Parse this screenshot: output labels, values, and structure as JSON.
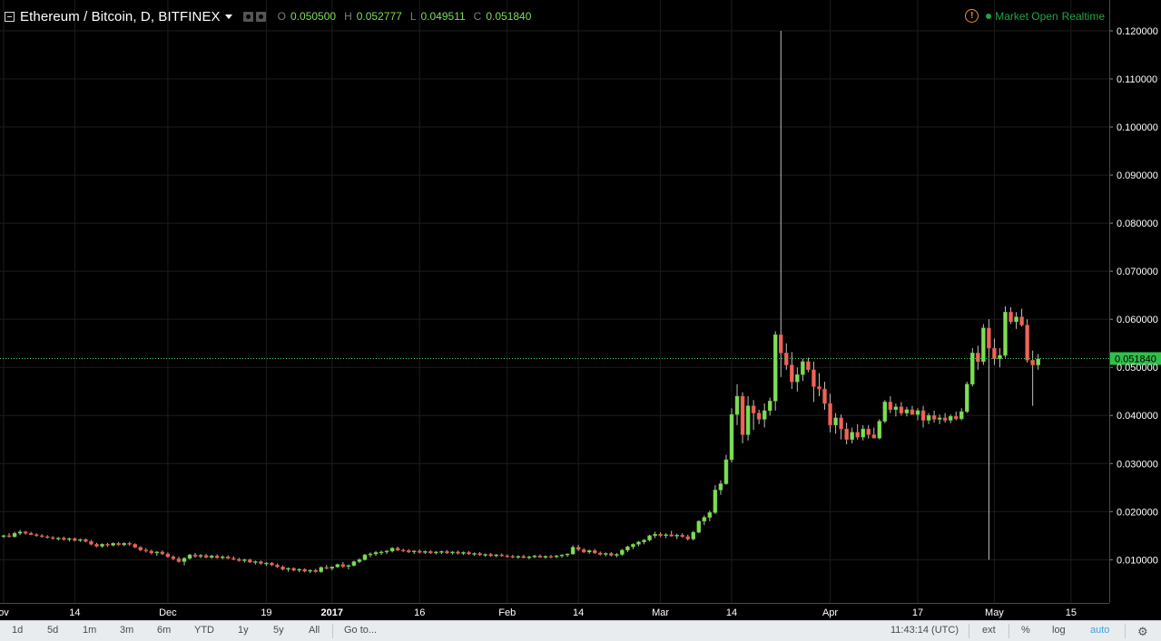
{
  "header": {
    "symbol_title": "Ethereum / Bitcoin, D, BITFINEX",
    "open_label": "O",
    "open": "0.050500",
    "high_label": "H",
    "high": "0.052777",
    "low_label": "L",
    "low": "0.049511",
    "close_label": "C",
    "close": "0.051840",
    "market_status": "Market Open",
    "feed_status": "Realtime"
  },
  "colors": {
    "background": "#000000",
    "grid": "#1c1c1c",
    "up": "#7fdc57",
    "down": "#f06458",
    "axis_text": "#ffffff",
    "price_line": "#49d05e"
  },
  "chart_data": {
    "type": "candlestick",
    "last_price": 0.05184,
    "last_price_label": "0.051840",
    "ylim": [
      -0.002,
      0.122
    ],
    "y_ticks": [
      0.01,
      0.02,
      0.03,
      0.04,
      0.05,
      0.06,
      0.07,
      0.08,
      0.09,
      0.1,
      0.11,
      0.12
    ],
    "y_tick_labels": [
      "0.010000",
      "0.020000",
      "0.030000",
      "0.040000",
      "0.050000",
      "0.060000",
      "0.070000",
      "0.080000",
      "0.090000",
      "0.100000",
      "0.110000",
      "0.120000"
    ],
    "x_ticks": [
      {
        "label": "ov",
        "index": 0,
        "bold": false
      },
      {
        "label": "14",
        "index": 13,
        "bold": false
      },
      {
        "label": "Dec",
        "index": 30,
        "bold": false
      },
      {
        "label": "19",
        "index": 48,
        "bold": false
      },
      {
        "label": "2017",
        "index": 60,
        "bold": true
      },
      {
        "label": "16",
        "index": 76,
        "bold": false
      },
      {
        "label": "Feb",
        "index": 92,
        "bold": false
      },
      {
        "label": "14",
        "index": 105,
        "bold": false
      },
      {
        "label": "Mar",
        "index": 120,
        "bold": false
      },
      {
        "label": "14",
        "index": 133,
        "bold": false
      },
      {
        "label": "Apr",
        "index": 151,
        "bold": false
      },
      {
        "label": "17",
        "index": 167,
        "bold": false
      },
      {
        "label": "May",
        "index": 181,
        "bold": false
      },
      {
        "label": "15",
        "index": 195,
        "bold": false
      }
    ],
    "candles": [
      [
        0.0148,
        0.0152,
        0.0145,
        0.015
      ],
      [
        0.015,
        0.0155,
        0.0146,
        0.0148
      ],
      [
        0.0148,
        0.0158,
        0.0146,
        0.0155
      ],
      [
        0.0155,
        0.0162,
        0.0151,
        0.0158
      ],
      [
        0.0158,
        0.016,
        0.0152,
        0.0155
      ],
      [
        0.0155,
        0.0158,
        0.0151,
        0.0152
      ],
      [
        0.0152,
        0.0155,
        0.0148,
        0.015
      ],
      [
        0.015,
        0.0153,
        0.0146,
        0.0148
      ],
      [
        0.0148,
        0.0151,
        0.0144,
        0.0146
      ],
      [
        0.0146,
        0.0149,
        0.0142,
        0.0144
      ],
      [
        0.0144,
        0.0147,
        0.014,
        0.0145
      ],
      [
        0.0145,
        0.0148,
        0.014,
        0.0142
      ],
      [
        0.0142,
        0.0146,
        0.0138,
        0.0144
      ],
      [
        0.0144,
        0.0146,
        0.0138,
        0.014
      ],
      [
        0.014,
        0.0144,
        0.0137,
        0.0142
      ],
      [
        0.0142,
        0.0144,
        0.0136,
        0.0138
      ],
      [
        0.0138,
        0.0141,
        0.013,
        0.0132
      ],
      [
        0.0132,
        0.0135,
        0.0126,
        0.0128
      ],
      [
        0.0128,
        0.0134,
        0.0125,
        0.0132
      ],
      [
        0.0132,
        0.0135,
        0.0127,
        0.013
      ],
      [
        0.013,
        0.0136,
        0.0128,
        0.0134
      ],
      [
        0.0134,
        0.0137,
        0.0129,
        0.0131
      ],
      [
        0.0131,
        0.0136,
        0.0128,
        0.0134
      ],
      [
        0.0134,
        0.0137,
        0.0129,
        0.0132
      ],
      [
        0.0132,
        0.0134,
        0.0124,
        0.0126
      ],
      [
        0.0126,
        0.0128,
        0.0118,
        0.012
      ],
      [
        0.012,
        0.0124,
        0.0115,
        0.0118
      ],
      [
        0.0118,
        0.0121,
        0.0111,
        0.0114
      ],
      [
        0.0114,
        0.0118,
        0.0108,
        0.0116
      ],
      [
        0.0116,
        0.0119,
        0.011,
        0.0112
      ],
      [
        0.0112,
        0.0115,
        0.0104,
        0.0106
      ],
      [
        0.0106,
        0.0109,
        0.0099,
        0.0102
      ],
      [
        0.0102,
        0.0106,
        0.0094,
        0.0096
      ],
      [
        0.0096,
        0.0105,
        0.0088,
        0.0103
      ],
      [
        0.0103,
        0.0112,
        0.01,
        0.011
      ],
      [
        0.011,
        0.0114,
        0.0104,
        0.0107
      ],
      [
        0.0107,
        0.0112,
        0.0103,
        0.0109
      ],
      [
        0.0109,
        0.0112,
        0.0103,
        0.0105
      ],
      [
        0.0105,
        0.011,
        0.0102,
        0.0108
      ],
      [
        0.0108,
        0.0111,
        0.0102,
        0.0104
      ],
      [
        0.0104,
        0.0109,
        0.0101,
        0.0106
      ],
      [
        0.0106,
        0.0109,
        0.0101,
        0.0103
      ],
      [
        0.0103,
        0.0107,
        0.0099,
        0.0101
      ],
      [
        0.0101,
        0.0104,
        0.0096,
        0.0098
      ],
      [
        0.0098,
        0.0102,
        0.0094,
        0.01
      ],
      [
        0.01,
        0.0102,
        0.0093,
        0.0095
      ],
      [
        0.0095,
        0.0098,
        0.009,
        0.0096
      ],
      [
        0.0096,
        0.0098,
        0.009,
        0.0092
      ],
      [
        0.0092,
        0.0095,
        0.0087,
        0.0093
      ],
      [
        0.0093,
        0.0095,
        0.0087,
        0.0089
      ],
      [
        0.0089,
        0.0092,
        0.0083,
        0.0085
      ],
      [
        0.0085,
        0.0088,
        0.0078,
        0.008
      ],
      [
        0.008,
        0.0084,
        0.0075,
        0.0082
      ],
      [
        0.0082,
        0.0084,
        0.0076,
        0.0078
      ],
      [
        0.0078,
        0.0082,
        0.0074,
        0.008
      ],
      [
        0.008,
        0.0082,
        0.0074,
        0.0076
      ],
      [
        0.0076,
        0.008,
        0.0072,
        0.0078
      ],
      [
        0.0078,
        0.0081,
        0.0073,
        0.0075
      ],
      [
        0.0075,
        0.0086,
        0.0073,
        0.0084
      ],
      [
        0.0084,
        0.0089,
        0.008,
        0.0082
      ],
      [
        0.0082,
        0.0086,
        0.0078,
        0.0085
      ],
      [
        0.0085,
        0.0092,
        0.0083,
        0.009
      ],
      [
        0.009,
        0.0095,
        0.0083,
        0.0086
      ],
      [
        0.0086,
        0.009,
        0.008,
        0.0088
      ],
      [
        0.0088,
        0.0098,
        0.0086,
        0.0096
      ],
      [
        0.0096,
        0.0103,
        0.0093,
        0.01
      ],
      [
        0.01,
        0.0112,
        0.0098,
        0.011
      ],
      [
        0.011,
        0.0115,
        0.0105,
        0.0112
      ],
      [
        0.0112,
        0.0118,
        0.0108,
        0.0115
      ],
      [
        0.0115,
        0.0119,
        0.011,
        0.0116
      ],
      [
        0.0116,
        0.012,
        0.0112,
        0.0118
      ],
      [
        0.0118,
        0.0126,
        0.0115,
        0.0124
      ],
      [
        0.0124,
        0.0127,
        0.0118,
        0.012
      ],
      [
        0.012,
        0.0123,
        0.0116,
        0.0119
      ],
      [
        0.0119,
        0.0122,
        0.0114,
        0.0116
      ],
      [
        0.0116,
        0.012,
        0.0112,
        0.0118
      ],
      [
        0.0118,
        0.0121,
        0.0113,
        0.0115
      ],
      [
        0.0115,
        0.0119,
        0.0112,
        0.0117
      ],
      [
        0.0117,
        0.012,
        0.0112,
        0.0114
      ],
      [
        0.0114,
        0.0118,
        0.0111,
        0.0116
      ],
      [
        0.0116,
        0.0119,
        0.0112,
        0.0117
      ],
      [
        0.0117,
        0.012,
        0.0112,
        0.0114
      ],
      [
        0.0114,
        0.0118,
        0.0111,
        0.0116
      ],
      [
        0.0116,
        0.0119,
        0.0111,
        0.0113
      ],
      [
        0.0113,
        0.0117,
        0.011,
        0.0115
      ],
      [
        0.0115,
        0.0118,
        0.011,
        0.0112
      ],
      [
        0.0112,
        0.0115,
        0.0108,
        0.0113
      ],
      [
        0.0113,
        0.0116,
        0.0108,
        0.011
      ],
      [
        0.011,
        0.0113,
        0.0106,
        0.0111
      ],
      [
        0.0111,
        0.0114,
        0.0106,
        0.0108
      ],
      [
        0.0108,
        0.0112,
        0.0105,
        0.011
      ],
      [
        0.011,
        0.0113,
        0.0106,
        0.0108
      ],
      [
        0.0108,
        0.0111,
        0.0104,
        0.0107
      ],
      [
        0.0107,
        0.011,
        0.0103,
        0.0105
      ],
      [
        0.0105,
        0.0109,
        0.0102,
        0.0107
      ],
      [
        0.0107,
        0.011,
        0.0103,
        0.0104
      ],
      [
        0.0104,
        0.0108,
        0.0101,
        0.0106
      ],
      [
        0.0106,
        0.011,
        0.0103,
        0.0108
      ],
      [
        0.0108,
        0.0111,
        0.0104,
        0.0105
      ],
      [
        0.0105,
        0.0109,
        0.0102,
        0.0107
      ],
      [
        0.0107,
        0.011,
        0.0103,
        0.0106
      ],
      [
        0.0106,
        0.011,
        0.0103,
        0.0108
      ],
      [
        0.0108,
        0.0111,
        0.0104,
        0.011
      ],
      [
        0.011,
        0.0113,
        0.0106,
        0.0112
      ],
      [
        0.0112,
        0.013,
        0.011,
        0.0126
      ],
      [
        0.0126,
        0.0131,
        0.0118,
        0.0121
      ],
      [
        0.0121,
        0.0124,
        0.0114,
        0.0116
      ],
      [
        0.0116,
        0.0121,
        0.0112,
        0.0119
      ],
      [
        0.0119,
        0.0122,
        0.0112,
        0.0114
      ],
      [
        0.0114,
        0.0117,
        0.0109,
        0.0111
      ],
      [
        0.0111,
        0.0115,
        0.0107,
        0.0113
      ],
      [
        0.0113,
        0.0116,
        0.0107,
        0.0109
      ],
      [
        0.0109,
        0.0114,
        0.0105,
        0.0111
      ],
      [
        0.0111,
        0.0122,
        0.0108,
        0.012
      ],
      [
        0.012,
        0.0129,
        0.0116,
        0.0127
      ],
      [
        0.0127,
        0.0134,
        0.0122,
        0.0132
      ],
      [
        0.0132,
        0.0139,
        0.0128,
        0.0137
      ],
      [
        0.0137,
        0.0143,
        0.0132,
        0.0141
      ],
      [
        0.0141,
        0.0152,
        0.0138,
        0.015
      ],
      [
        0.015,
        0.0158,
        0.0145,
        0.0153
      ],
      [
        0.0153,
        0.0157,
        0.0147,
        0.015
      ],
      [
        0.015,
        0.0155,
        0.0145,
        0.0152
      ],
      [
        0.0152,
        0.016,
        0.0148,
        0.0149
      ],
      [
        0.0149,
        0.0154,
        0.0143,
        0.0151
      ],
      [
        0.0151,
        0.0155,
        0.0146,
        0.0148
      ],
      [
        0.0148,
        0.0152,
        0.014,
        0.0143
      ],
      [
        0.0143,
        0.016,
        0.014,
        0.0157
      ],
      [
        0.0157,
        0.0182,
        0.0155,
        0.018
      ],
      [
        0.018,
        0.0192,
        0.0172,
        0.0188
      ],
      [
        0.0188,
        0.0202,
        0.018,
        0.0198
      ],
      [
        0.0198,
        0.0255,
        0.0195,
        0.0245
      ],
      [
        0.0245,
        0.0265,
        0.0235,
        0.0258
      ],
      [
        0.0258,
        0.0318,
        0.0256,
        0.0308
      ],
      [
        0.0308,
        0.0415,
        0.0302,
        0.0402
      ],
      [
        0.0402,
        0.0465,
        0.038,
        0.044
      ],
      [
        0.044,
        0.0448,
        0.0342,
        0.036
      ],
      [
        0.036,
        0.044,
        0.0348,
        0.042
      ],
      [
        0.042,
        0.0432,
        0.037,
        0.0405
      ],
      [
        0.0405,
        0.0412,
        0.0382,
        0.0392
      ],
      [
        0.0392,
        0.0425,
        0.0375,
        0.041
      ],
      [
        0.041,
        0.0437,
        0.04,
        0.043
      ],
      [
        0.043,
        0.0575,
        0.041,
        0.0568
      ],
      [
        0.0568,
        0.12,
        0.048,
        0.053
      ],
      [
        0.053,
        0.055,
        0.0495,
        0.0505
      ],
      [
        0.0505,
        0.0532,
        0.0455,
        0.047
      ],
      [
        0.047,
        0.05,
        0.045,
        0.0485
      ],
      [
        0.0485,
        0.0518,
        0.0472,
        0.0512
      ],
      [
        0.0512,
        0.052,
        0.049,
        0.0495
      ],
      [
        0.0495,
        0.0512,
        0.0428,
        0.046
      ],
      [
        0.046,
        0.0488,
        0.044,
        0.0455
      ],
      [
        0.0455,
        0.047,
        0.0412,
        0.0425
      ],
      [
        0.0425,
        0.0445,
        0.0365,
        0.038
      ],
      [
        0.038,
        0.0405,
        0.0362,
        0.0395
      ],
      [
        0.0395,
        0.0402,
        0.035,
        0.0372
      ],
      [
        0.0372,
        0.0385,
        0.034,
        0.035
      ],
      [
        0.035,
        0.0375,
        0.0342,
        0.0365
      ],
      [
        0.0365,
        0.0382,
        0.035,
        0.0355
      ],
      [
        0.0355,
        0.038,
        0.0348,
        0.0372
      ],
      [
        0.0372,
        0.038,
        0.0352,
        0.036
      ],
      [
        0.036,
        0.0375,
        0.0352,
        0.0353
      ],
      [
        0.0353,
        0.0392,
        0.035,
        0.0388
      ],
      [
        0.0388,
        0.0432,
        0.0384,
        0.0428
      ],
      [
        0.0428,
        0.044,
        0.0405,
        0.0412
      ],
      [
        0.0412,
        0.0425,
        0.0398,
        0.0418
      ],
      [
        0.0418,
        0.0428,
        0.04,
        0.0405
      ],
      [
        0.0405,
        0.0418,
        0.0398,
        0.0412
      ],
      [
        0.0412,
        0.042,
        0.0402,
        0.0402
      ],
      [
        0.0402,
        0.0415,
        0.039,
        0.041
      ],
      [
        0.041,
        0.042,
        0.0375,
        0.039
      ],
      [
        0.039,
        0.0405,
        0.0382,
        0.04
      ],
      [
        0.04,
        0.041,
        0.0385,
        0.0392
      ],
      [
        0.0392,
        0.0402,
        0.0382,
        0.0395
      ],
      [
        0.0395,
        0.0405,
        0.0385,
        0.039
      ],
      [
        0.039,
        0.0402,
        0.0384,
        0.0398
      ],
      [
        0.0398,
        0.0408,
        0.039,
        0.0393
      ],
      [
        0.0393,
        0.0415,
        0.039,
        0.0408
      ],
      [
        0.0408,
        0.047,
        0.0405,
        0.0465
      ],
      [
        0.0465,
        0.054,
        0.046,
        0.053
      ],
      [
        0.053,
        0.0545,
        0.0495,
        0.0512
      ],
      [
        0.0512,
        0.059,
        0.0505,
        0.0582
      ],
      [
        0.0582,
        0.06,
        0.01,
        0.054
      ],
      [
        0.054,
        0.056,
        0.0505,
        0.0518
      ],
      [
        0.0518,
        0.054,
        0.05,
        0.0525
      ],
      [
        0.0525,
        0.0627,
        0.052,
        0.0615
      ],
      [
        0.0615,
        0.0625,
        0.059,
        0.0595
      ],
      [
        0.0595,
        0.0615,
        0.058,
        0.0605
      ],
      [
        0.0605,
        0.0622,
        0.0585,
        0.0588
      ],
      [
        0.0588,
        0.06,
        0.051,
        0.0515
      ],
      [
        0.0515,
        0.0535,
        0.042,
        0.0505
      ],
      [
        0.0505,
        0.0528,
        0.0495,
        0.0518
      ]
    ]
  },
  "toolbar": {
    "ranges": [
      "1d",
      "5d",
      "1m",
      "3m",
      "6m",
      "YTD",
      "1y",
      "5y",
      "All"
    ],
    "goto_label": "Go to...",
    "clock": "11:43:14 (UTC)",
    "ext_label": "ext",
    "percent_label": "%",
    "log_label": "log",
    "auto_label": "auto"
  }
}
